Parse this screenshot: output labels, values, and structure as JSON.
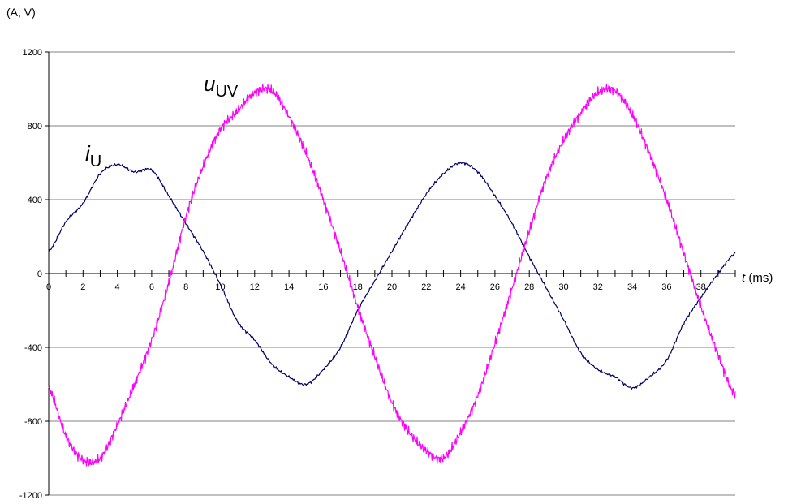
{
  "chart_data": {
    "type": "line",
    "unit_label": "(A, V)",
    "xlabel": {
      "symbol": "t",
      "unit": " (ms)"
    },
    "xlim": [
      0,
      40
    ],
    "ylim": [
      -1200,
      1200
    ],
    "x_ticks": [
      0,
      2,
      4,
      6,
      8,
      10,
      12,
      14,
      16,
      18,
      20,
      22,
      24,
      26,
      28,
      30,
      32,
      34,
      36,
      38
    ],
    "y_ticks": [
      1200,
      800,
      400,
      0,
      -400,
      -800,
      -1200
    ],
    "grid": {
      "horizontal": true,
      "vertical": false
    },
    "series": [
      {
        "key": "current",
        "label_main": "i",
        "label_sub": "U",
        "color": "#000066",
        "x": [
          0,
          1,
          2,
          3,
          4,
          5,
          6,
          7,
          8,
          9,
          10,
          11,
          12,
          13,
          14,
          15,
          16,
          17,
          18,
          19,
          20,
          21,
          22,
          23,
          24,
          25,
          26,
          27,
          28,
          29,
          30,
          31,
          32,
          33,
          34,
          35,
          36,
          37,
          38,
          39,
          40
        ],
        "values": [
          120,
          280,
          380,
          540,
          590,
          550,
          560,
          420,
          270,
          120,
          -60,
          -260,
          -360,
          -490,
          -560,
          -600,
          -520,
          -400,
          -200,
          -40,
          120,
          280,
          430,
          540,
          600,
          550,
          420,
          270,
          90,
          -80,
          -250,
          -430,
          -520,
          -560,
          -620,
          -560,
          -470,
          -270,
          -130,
          0,
          110
        ]
      },
      {
        "key": "voltage",
        "label_main": "u",
        "label_sub": "UV",
        "color": "#ff00ff",
        "x": [
          0,
          1,
          2,
          3,
          4,
          5,
          6,
          7,
          8,
          9,
          10,
          11,
          12,
          13,
          14,
          15,
          16,
          17,
          18,
          19,
          20,
          21,
          22,
          23,
          24,
          25,
          26,
          27,
          28,
          29,
          30,
          31,
          32,
          33,
          34,
          35,
          36,
          37,
          38,
          39,
          40
        ],
        "values": [
          -620,
          -880,
          -1010,
          -1000,
          -820,
          -600,
          -360,
          -50,
          310,
          580,
          780,
          880,
          980,
          990,
          850,
          650,
          400,
          120,
          -180,
          -450,
          -700,
          -860,
          -960,
          -1000,
          -860,
          -660,
          -380,
          -80,
          230,
          520,
          720,
          870,
          980,
          990,
          860,
          650,
          400,
          110,
          -180,
          -440,
          -660
        ]
      }
    ]
  }
}
